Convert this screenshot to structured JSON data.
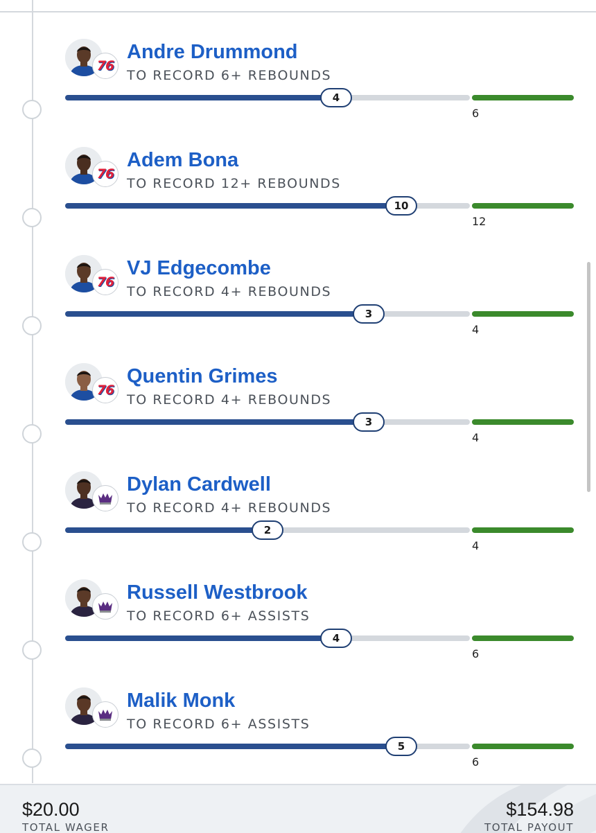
{
  "legs": [
    {
      "player": "Andre Drummond",
      "market": "TO RECORD 6+ REBOUNDS",
      "current": "4",
      "goal": "6",
      "progress": 0.67,
      "team": "76ers",
      "logo_text": "76",
      "skin": "#5a3a28"
    },
    {
      "player": "Adem Bona",
      "market": "TO RECORD 12+ REBOUNDS",
      "current": "10",
      "goal": "12",
      "progress": 0.83,
      "team": "76ers",
      "logo_text": "76",
      "skin": "#4a2e20"
    },
    {
      "player": "VJ Edgecombe",
      "market": "TO RECORD 4+ REBOUNDS",
      "current": "3",
      "goal": "4",
      "progress": 0.75,
      "team": "76ers",
      "logo_text": "76",
      "skin": "#5b3a27"
    },
    {
      "player": "Quentin Grimes",
      "market": "TO RECORD 4+ REBOUNDS",
      "current": "3",
      "goal": "4",
      "progress": 0.75,
      "team": "76ers",
      "logo_text": "76",
      "skin": "#8a5e44"
    },
    {
      "player": "Dylan Cardwell",
      "market": "TO RECORD 4+ REBOUNDS",
      "current": "2",
      "goal": "4",
      "progress": 0.5,
      "team": "Kings",
      "logo_text": "",
      "skin": "#4e3122"
    },
    {
      "player": "Russell Westbrook",
      "market": "TO RECORD 6+ ASSISTS",
      "current": "4",
      "goal": "6",
      "progress": 0.67,
      "team": "Kings",
      "logo_text": "",
      "skin": "#5b3a28"
    },
    {
      "player": "Malik Monk",
      "market": "TO RECORD 6+ ASSISTS",
      "current": "5",
      "goal": "6",
      "progress": 0.83,
      "team": "Kings",
      "logo_text": "",
      "skin": "#5a3826"
    }
  ],
  "footer": {
    "wager_amount": "$20.00",
    "wager_label": "TOTAL WAGER",
    "payout_amount": "$154.98",
    "payout_label": "TOTAL PAYOUT"
  },
  "colors": {
    "name_blue": "#1d5fc6",
    "fill_navy": "#2a4f8f",
    "track_gray": "#d4d8dd",
    "goal_green": "#3b8a2c",
    "sixers_red": "#e0203a",
    "kings_purple": "#5a2d81"
  }
}
